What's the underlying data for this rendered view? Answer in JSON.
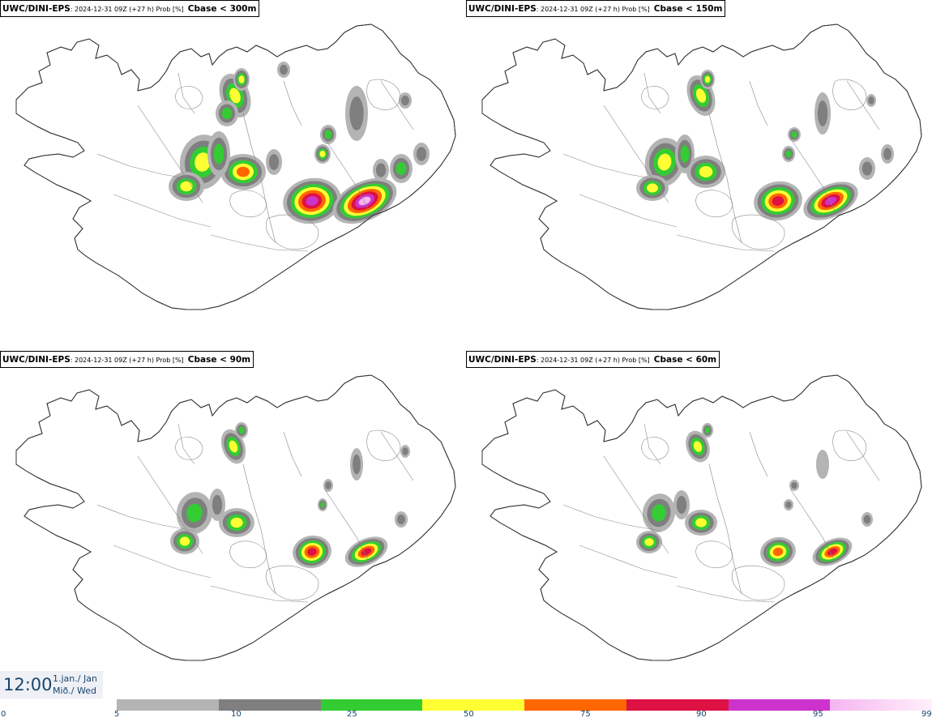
{
  "panels": [
    {
      "model": "UWC/DINI-EPS",
      "meta": ": 2024-12-31 09Z (+27 h) Prob [%]",
      "variable": "Cbase < 300m"
    },
    {
      "model": "UWC/DINI-EPS",
      "meta": ": 2024-12-31 09Z (+27 h) Prob [%]",
      "variable": "Cbase < 150m"
    },
    {
      "model": "UWC/DINI-EPS",
      "meta": ": 2024-12-31 09Z (+27 h) Prob [%]",
      "variable": "Cbase < 90m"
    },
    {
      "model": "UWC/DINI-EPS",
      "meta": ": 2024-12-31 09Z (+27 h) Prob [%]",
      "variable": "Cbase < 60m"
    }
  ],
  "valid_time": {
    "time": "12:00",
    "date_line1": "1.jan./ Jan",
    "date_line2": "Mið./ Wed"
  },
  "legend": {
    "ticks": [
      "0",
      "5",
      "10",
      "25",
      "50",
      "75",
      "90",
      "95",
      "99"
    ],
    "colors": [
      "#b4b4b4",
      "#7f7f7f",
      "#33cc33",
      "#ffff33",
      "#ff6600",
      "#dd1144",
      "#cc33cc",
      "#f5b5f0"
    ]
  }
}
